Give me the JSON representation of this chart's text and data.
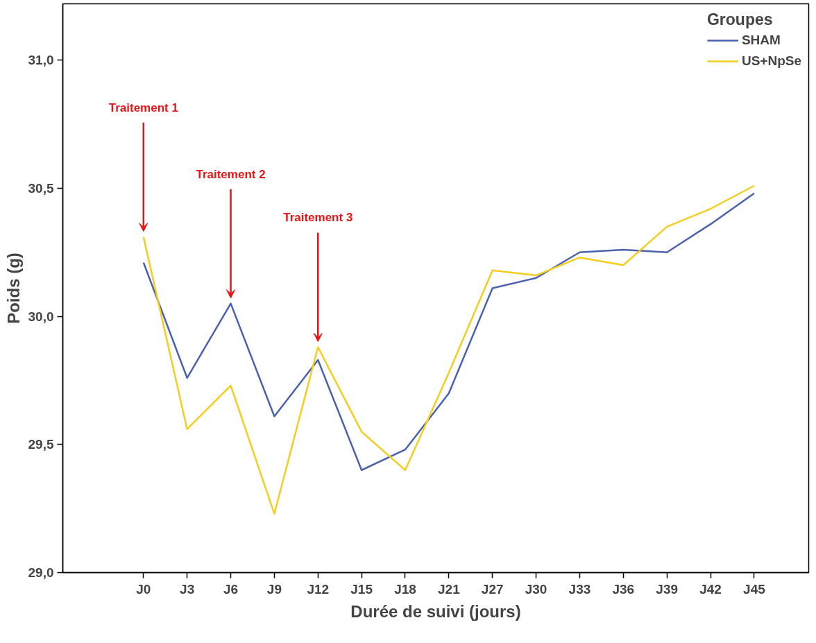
{
  "chart_data": {
    "type": "line",
    "xlabel": "Durée de suivi (jours)",
    "ylabel": "Poids (g)",
    "legend_title": "Groupes",
    "legend": "top right",
    "grid": false,
    "marker": "none",
    "line_style": "solid",
    "categories": [
      "J0",
      "J3",
      "J6",
      "J9",
      "J12",
      "J15",
      "J18",
      "J21",
      "J27",
      "J30",
      "J33",
      "J36",
      "J39",
      "J42",
      "J45"
    ],
    "ylim": [
      29.0,
      31.22
    ],
    "yticks": [
      {
        "value": 29.0,
        "label": "29,0"
      },
      {
        "value": 29.5,
        "label": "29,5"
      },
      {
        "value": 30.0,
        "label": "30,0"
      },
      {
        "value": 30.5,
        "label": "30,5"
      },
      {
        "value": 31.0,
        "label": "31,0"
      }
    ],
    "series": [
      {
        "name": "SHAM",
        "color": "#4a62ad",
        "values": [
          30.21,
          29.76,
          30.05,
          29.61,
          29.83,
          29.4,
          29.48,
          29.7,
          30.11,
          30.15,
          30.25,
          30.26,
          30.25,
          30.36,
          30.48
        ]
      },
      {
        "name": "US+NpSe",
        "color": "#f5cd1f",
        "values": [
          30.31,
          29.56,
          29.73,
          29.23,
          29.88,
          29.55,
          29.4,
          29.78,
          30.18,
          30.16,
          30.23,
          30.2,
          30.35,
          30.42,
          30.51
        ]
      }
    ],
    "annotations": [
      {
        "text": "Traitement 1",
        "x": "J0",
        "y": 30.31
      },
      {
        "text": "Traitement 2",
        "x": "J6",
        "y": 30.05
      },
      {
        "text": "Traitement 3",
        "x": "J12",
        "y": 29.88
      }
    ]
  }
}
